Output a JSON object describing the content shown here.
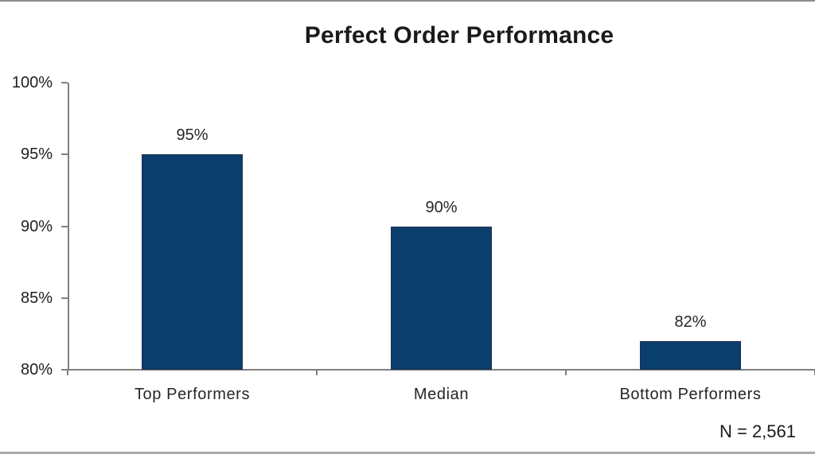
{
  "page": {
    "title": "Perfect Order Performance",
    "note": "N = 2,561"
  },
  "chart_data": {
    "type": "bar",
    "title": "Perfect Order Performance",
    "categories": [
      "Top Performers",
      "Median",
      "Bottom Performers"
    ],
    "values": [
      95,
      90,
      82
    ],
    "value_labels": [
      "95%",
      "90%",
      "82%"
    ],
    "ylim": [
      80,
      100
    ],
    "yticks": [
      100,
      95,
      90,
      85,
      80
    ],
    "ytick_labels": [
      "100%",
      "95%",
      "90%",
      "85%",
      "80%"
    ],
    "xlabel": "",
    "ylabel": "",
    "annotation": "N = 2,561",
    "grid": "off",
    "legend": "none",
    "colors": {
      "bar_fill": "#0b3f6e",
      "bar_border": "#16365c",
      "axis": "#808080",
      "text": "#262626",
      "title_text": "#1a1a1a"
    }
  }
}
